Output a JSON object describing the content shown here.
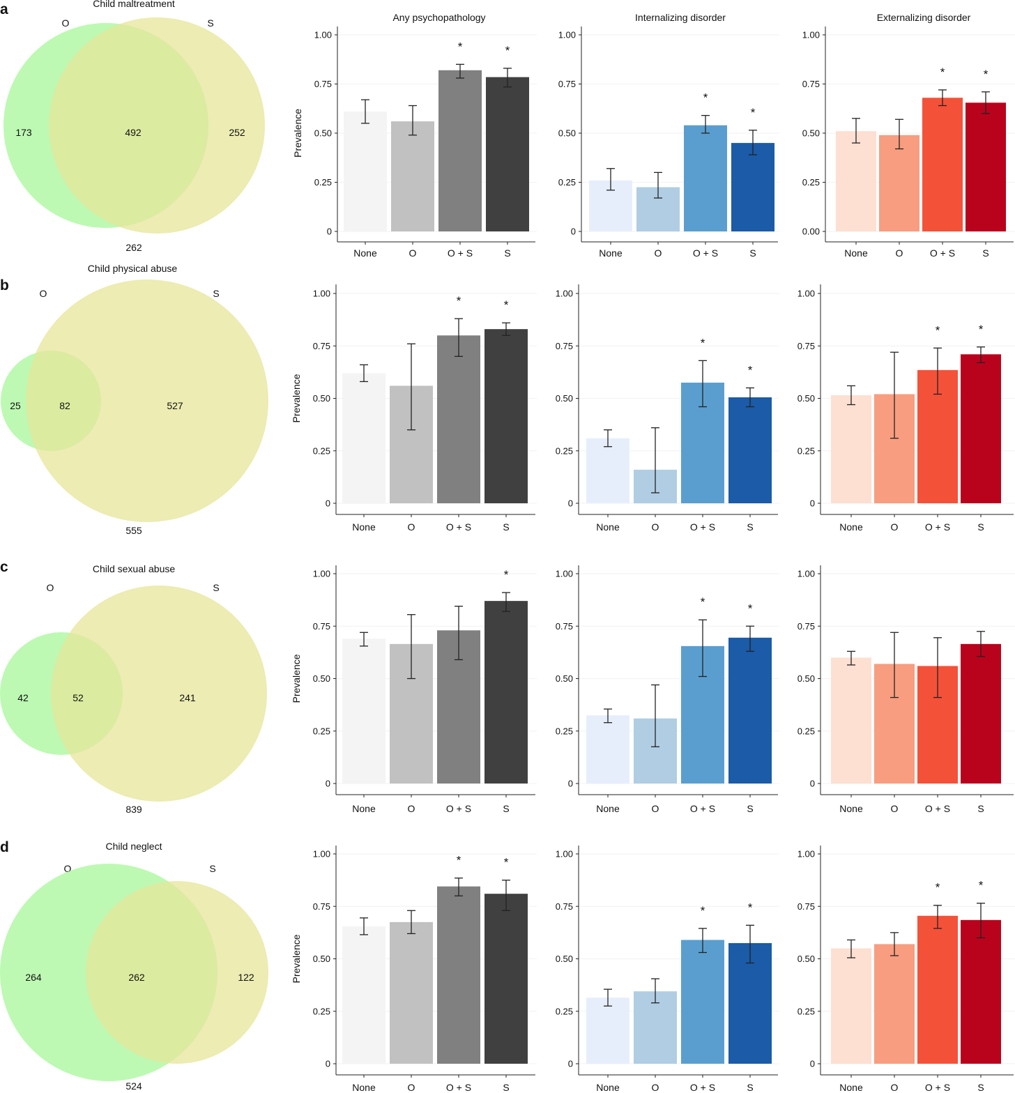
{
  "column_titles": [
    "Any psychopathology",
    "Internalizing disorder",
    "Externalizing disorder"
  ],
  "rows": [
    {
      "letter": "a",
      "venn": {
        "title": "Child maltreatment",
        "left_label": "O",
        "right_label": "S",
        "left_only": "173",
        "both": "492",
        "right_only": "252",
        "neither": "262"
      }
    },
    {
      "letter": "b",
      "venn": {
        "title": "Child physical abuse",
        "left_label": "O",
        "right_label": "S",
        "left_only": "25",
        "both": "82",
        "right_only": "527",
        "neither": "555"
      }
    },
    {
      "letter": "c",
      "venn": {
        "title": "Child sexual abuse",
        "left_label": "O",
        "right_label": "S",
        "left_only": "42",
        "both": "52",
        "right_only": "241",
        "neither": "839"
      }
    },
    {
      "letter": "d",
      "venn": {
        "title": "Child neglect",
        "left_label": "O",
        "right_label": "S",
        "left_only": "264",
        "both": "262",
        "right_only": "122",
        "neither": "524"
      }
    }
  ],
  "palette": {
    "venn_left": "#adf7a0",
    "venn_right": "#e6e69a",
    "venn_overlap": "#bde878",
    "grey": [
      "#f4f4f4",
      "#c1c1c1",
      "#808080",
      "#404040"
    ],
    "blue": [
      "#e7eefb",
      "#b0cde3",
      "#5a9ecf",
      "#1b5ba7"
    ],
    "red": [
      "#fde0d2",
      "#f89d7f",
      "#f45139",
      "#b9031d"
    ]
  },
  "chart_data": [
    {
      "type": "bar",
      "row": "a",
      "title": "Any psychopathology",
      "ylabel": "Prevalence",
      "ylim": [
        0,
        1
      ],
      "yticks": [
        "0",
        "0.25",
        "0.50",
        "0.75",
        "1.00"
      ],
      "categories": [
        "None",
        "O",
        "O + S",
        "S"
      ],
      "values": [
        0.61,
        0.56,
        0.82,
        0.785
      ],
      "ci_low": [
        0.55,
        0.49,
        0.78,
        0.735
      ],
      "ci_high": [
        0.67,
        0.64,
        0.85,
        0.83
      ],
      "significance": [
        "",
        "",
        "*",
        "*"
      ]
    },
    {
      "type": "bar",
      "row": "a",
      "title": "Internalizing disorder",
      "ylabel": "",
      "ylim": [
        0,
        1
      ],
      "yticks": [
        "0",
        "0.25",
        "0.50",
        "0.75",
        "1.00"
      ],
      "categories": [
        "None",
        "O",
        "O + S",
        "S"
      ],
      "values": [
        0.26,
        0.225,
        0.54,
        0.45
      ],
      "ci_low": [
        0.21,
        0.17,
        0.5,
        0.39
      ],
      "ci_high": [
        0.32,
        0.3,
        0.59,
        0.515
      ],
      "significance": [
        "",
        "",
        "*",
        "*"
      ]
    },
    {
      "type": "bar",
      "row": "a",
      "title": "Externalizing disorder",
      "ylabel": "",
      "ylim": [
        0,
        1
      ],
      "yticks": [
        "0.00",
        "0.25",
        "0.50",
        "0.75",
        "1.00"
      ],
      "categories": [
        "None",
        "O",
        "O + S",
        "S"
      ],
      "values": [
        0.51,
        0.49,
        0.68,
        0.655
      ],
      "ci_low": [
        0.45,
        0.42,
        0.64,
        0.6
      ],
      "ci_high": [
        0.575,
        0.57,
        0.72,
        0.71
      ],
      "significance": [
        "",
        "",
        "*",
        "*"
      ]
    },
    {
      "type": "bar",
      "row": "b",
      "title": "",
      "ylabel": "Prevalence",
      "ylim": [
        0,
        1
      ],
      "yticks": [
        "0",
        "0.25",
        "0.50",
        "0.75",
        "1.00"
      ],
      "categories": [
        "None",
        "O",
        "O + S",
        "S"
      ],
      "values": [
        0.62,
        0.56,
        0.8,
        0.83
      ],
      "ci_low": [
        0.58,
        0.35,
        0.7,
        0.8
      ],
      "ci_high": [
        0.66,
        0.76,
        0.88,
        0.86
      ],
      "significance": [
        "",
        "",
        "*",
        "*"
      ]
    },
    {
      "type": "bar",
      "row": "b",
      "title": "",
      "ylabel": "",
      "ylim": [
        0,
        1
      ],
      "yticks": [
        "0",
        "0.25",
        "0.50",
        "0.75",
        "1.00"
      ],
      "categories": [
        "None",
        "O",
        "O + S",
        "S"
      ],
      "values": [
        0.31,
        0.16,
        0.575,
        0.505
      ],
      "ci_low": [
        0.27,
        0.05,
        0.46,
        0.46
      ],
      "ci_high": [
        0.35,
        0.36,
        0.68,
        0.55
      ],
      "significance": [
        "",
        "",
        "*",
        "*"
      ]
    },
    {
      "type": "bar",
      "row": "b",
      "title": "",
      "ylabel": "",
      "ylim": [
        0,
        1
      ],
      "yticks": [
        "0",
        "0.25",
        "0.50",
        "0.75",
        "1.00"
      ],
      "categories": [
        "None",
        "O",
        "O + S",
        "S"
      ],
      "values": [
        0.515,
        0.52,
        0.635,
        0.71
      ],
      "ci_low": [
        0.47,
        0.31,
        0.52,
        0.67
      ],
      "ci_high": [
        0.56,
        0.72,
        0.74,
        0.745
      ],
      "significance": [
        "",
        "",
        "*",
        "*"
      ]
    },
    {
      "type": "bar",
      "row": "c",
      "title": "",
      "ylabel": "Prevalence",
      "ylim": [
        0,
        1
      ],
      "yticks": [
        "0",
        "0.25",
        "0.50",
        "0.75",
        "1.00"
      ],
      "categories": [
        "None",
        "O",
        "O + S",
        "S"
      ],
      "values": [
        0.69,
        0.665,
        0.73,
        0.87
      ],
      "ci_low": [
        0.655,
        0.5,
        0.59,
        0.82
      ],
      "ci_high": [
        0.72,
        0.805,
        0.845,
        0.91
      ],
      "significance": [
        "",
        "",
        "",
        "*"
      ]
    },
    {
      "type": "bar",
      "row": "c",
      "title": "",
      "ylabel": "",
      "ylim": [
        0,
        1
      ],
      "yticks": [
        "0",
        "0.25",
        "0.50",
        "0.75",
        "1.00"
      ],
      "categories": [
        "None",
        "O",
        "O + S",
        "S"
      ],
      "values": [
        0.325,
        0.31,
        0.655,
        0.695
      ],
      "ci_low": [
        0.29,
        0.175,
        0.51,
        0.63
      ],
      "ci_high": [
        0.355,
        0.47,
        0.78,
        0.75
      ],
      "significance": [
        "",
        "",
        "*",
        "*"
      ]
    },
    {
      "type": "bar",
      "row": "c",
      "title": "",
      "ylabel": "",
      "ylim": [
        0,
        1
      ],
      "yticks": [
        "0",
        "0.25",
        "0.50",
        "0.75",
        "1.00"
      ],
      "categories": [
        "None",
        "O",
        "O + S",
        "S"
      ],
      "values": [
        0.6,
        0.57,
        0.56,
        0.665
      ],
      "ci_low": [
        0.565,
        0.41,
        0.41,
        0.605
      ],
      "ci_high": [
        0.63,
        0.72,
        0.695,
        0.725
      ],
      "significance": [
        "",
        "",
        "",
        ""
      ]
    },
    {
      "type": "bar",
      "row": "d",
      "title": "",
      "ylabel": "Prevalence",
      "ylim": [
        0,
        1
      ],
      "yticks": [
        "0",
        "0.25",
        "0.50",
        "0.75",
        "1.00"
      ],
      "categories": [
        "None",
        "O",
        "O + S",
        "S"
      ],
      "values": [
        0.655,
        0.675,
        0.845,
        0.81
      ],
      "ci_low": [
        0.615,
        0.62,
        0.8,
        0.73
      ],
      "ci_high": [
        0.695,
        0.73,
        0.885,
        0.875
      ],
      "significance": [
        "",
        "",
        "*",
        "*"
      ]
    },
    {
      "type": "bar",
      "row": "d",
      "title": "",
      "ylabel": "",
      "ylim": [
        0,
        1
      ],
      "yticks": [
        "0",
        "0.25",
        "0.50",
        "0.75",
        "1.00"
      ],
      "categories": [
        "None",
        "O",
        "O + S",
        "S"
      ],
      "values": [
        0.315,
        0.345,
        0.59,
        0.575
      ],
      "ci_low": [
        0.275,
        0.29,
        0.53,
        0.48
      ],
      "ci_high": [
        0.355,
        0.405,
        0.645,
        0.66
      ],
      "significance": [
        "",
        "",
        "*",
        "*"
      ]
    },
    {
      "type": "bar",
      "row": "d",
      "title": "",
      "ylabel": "",
      "ylim": [
        0,
        1
      ],
      "yticks": [
        "0",
        "0.25",
        "0.50",
        "0.75",
        "1.00"
      ],
      "categories": [
        "None",
        "O",
        "O + S",
        "S"
      ],
      "values": [
        0.55,
        0.57,
        0.705,
        0.685
      ],
      "ci_low": [
        0.505,
        0.515,
        0.645,
        0.6
      ],
      "ci_high": [
        0.59,
        0.625,
        0.755,
        0.765
      ],
      "significance": [
        "",
        "",
        "*",
        "*"
      ]
    }
  ]
}
